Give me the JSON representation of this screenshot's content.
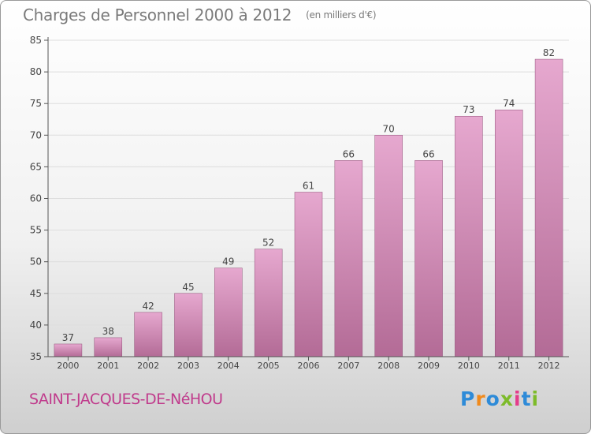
{
  "header": {
    "title": "Charges de Personnel 2000 à 2012",
    "subtitle": "(en milliers d'€)"
  },
  "footer": {
    "commune": "SAINT-JACQUES-DE-NéHOU",
    "logo_text": "Proxiti",
    "logo_colors": [
      "#2e8bd8",
      "#f08a1c",
      "#2e8bd8",
      "#7dbb2a",
      "#e43c8b",
      "#2e8bd8",
      "#7dbb2a"
    ]
  },
  "colors": {
    "bar_top": "#e6a8cf",
    "bar_bottom": "#b36b96",
    "bar_stroke": "#8f4f77",
    "axis": "#555555",
    "grid": "#dddddd",
    "label": "#444444"
  },
  "chart_data": {
    "type": "bar",
    "title": "Charges de Personnel 2000 à 2012",
    "subtitle": "(en milliers d'€)",
    "categories": [
      "2000",
      "2001",
      "2002",
      "2003",
      "2004",
      "2005",
      "2006",
      "2007",
      "2008",
      "2009",
      "2010",
      "2011",
      "2012"
    ],
    "values": [
      37,
      38,
      42,
      45,
      49,
      52,
      61,
      66,
      70,
      66,
      73,
      74,
      82
    ],
    "ylim": [
      35,
      85
    ],
    "yticks": [
      35,
      40,
      45,
      50,
      55,
      60,
      65,
      70,
      75,
      80,
      85
    ],
    "grid": true,
    "data_labels": true
  }
}
